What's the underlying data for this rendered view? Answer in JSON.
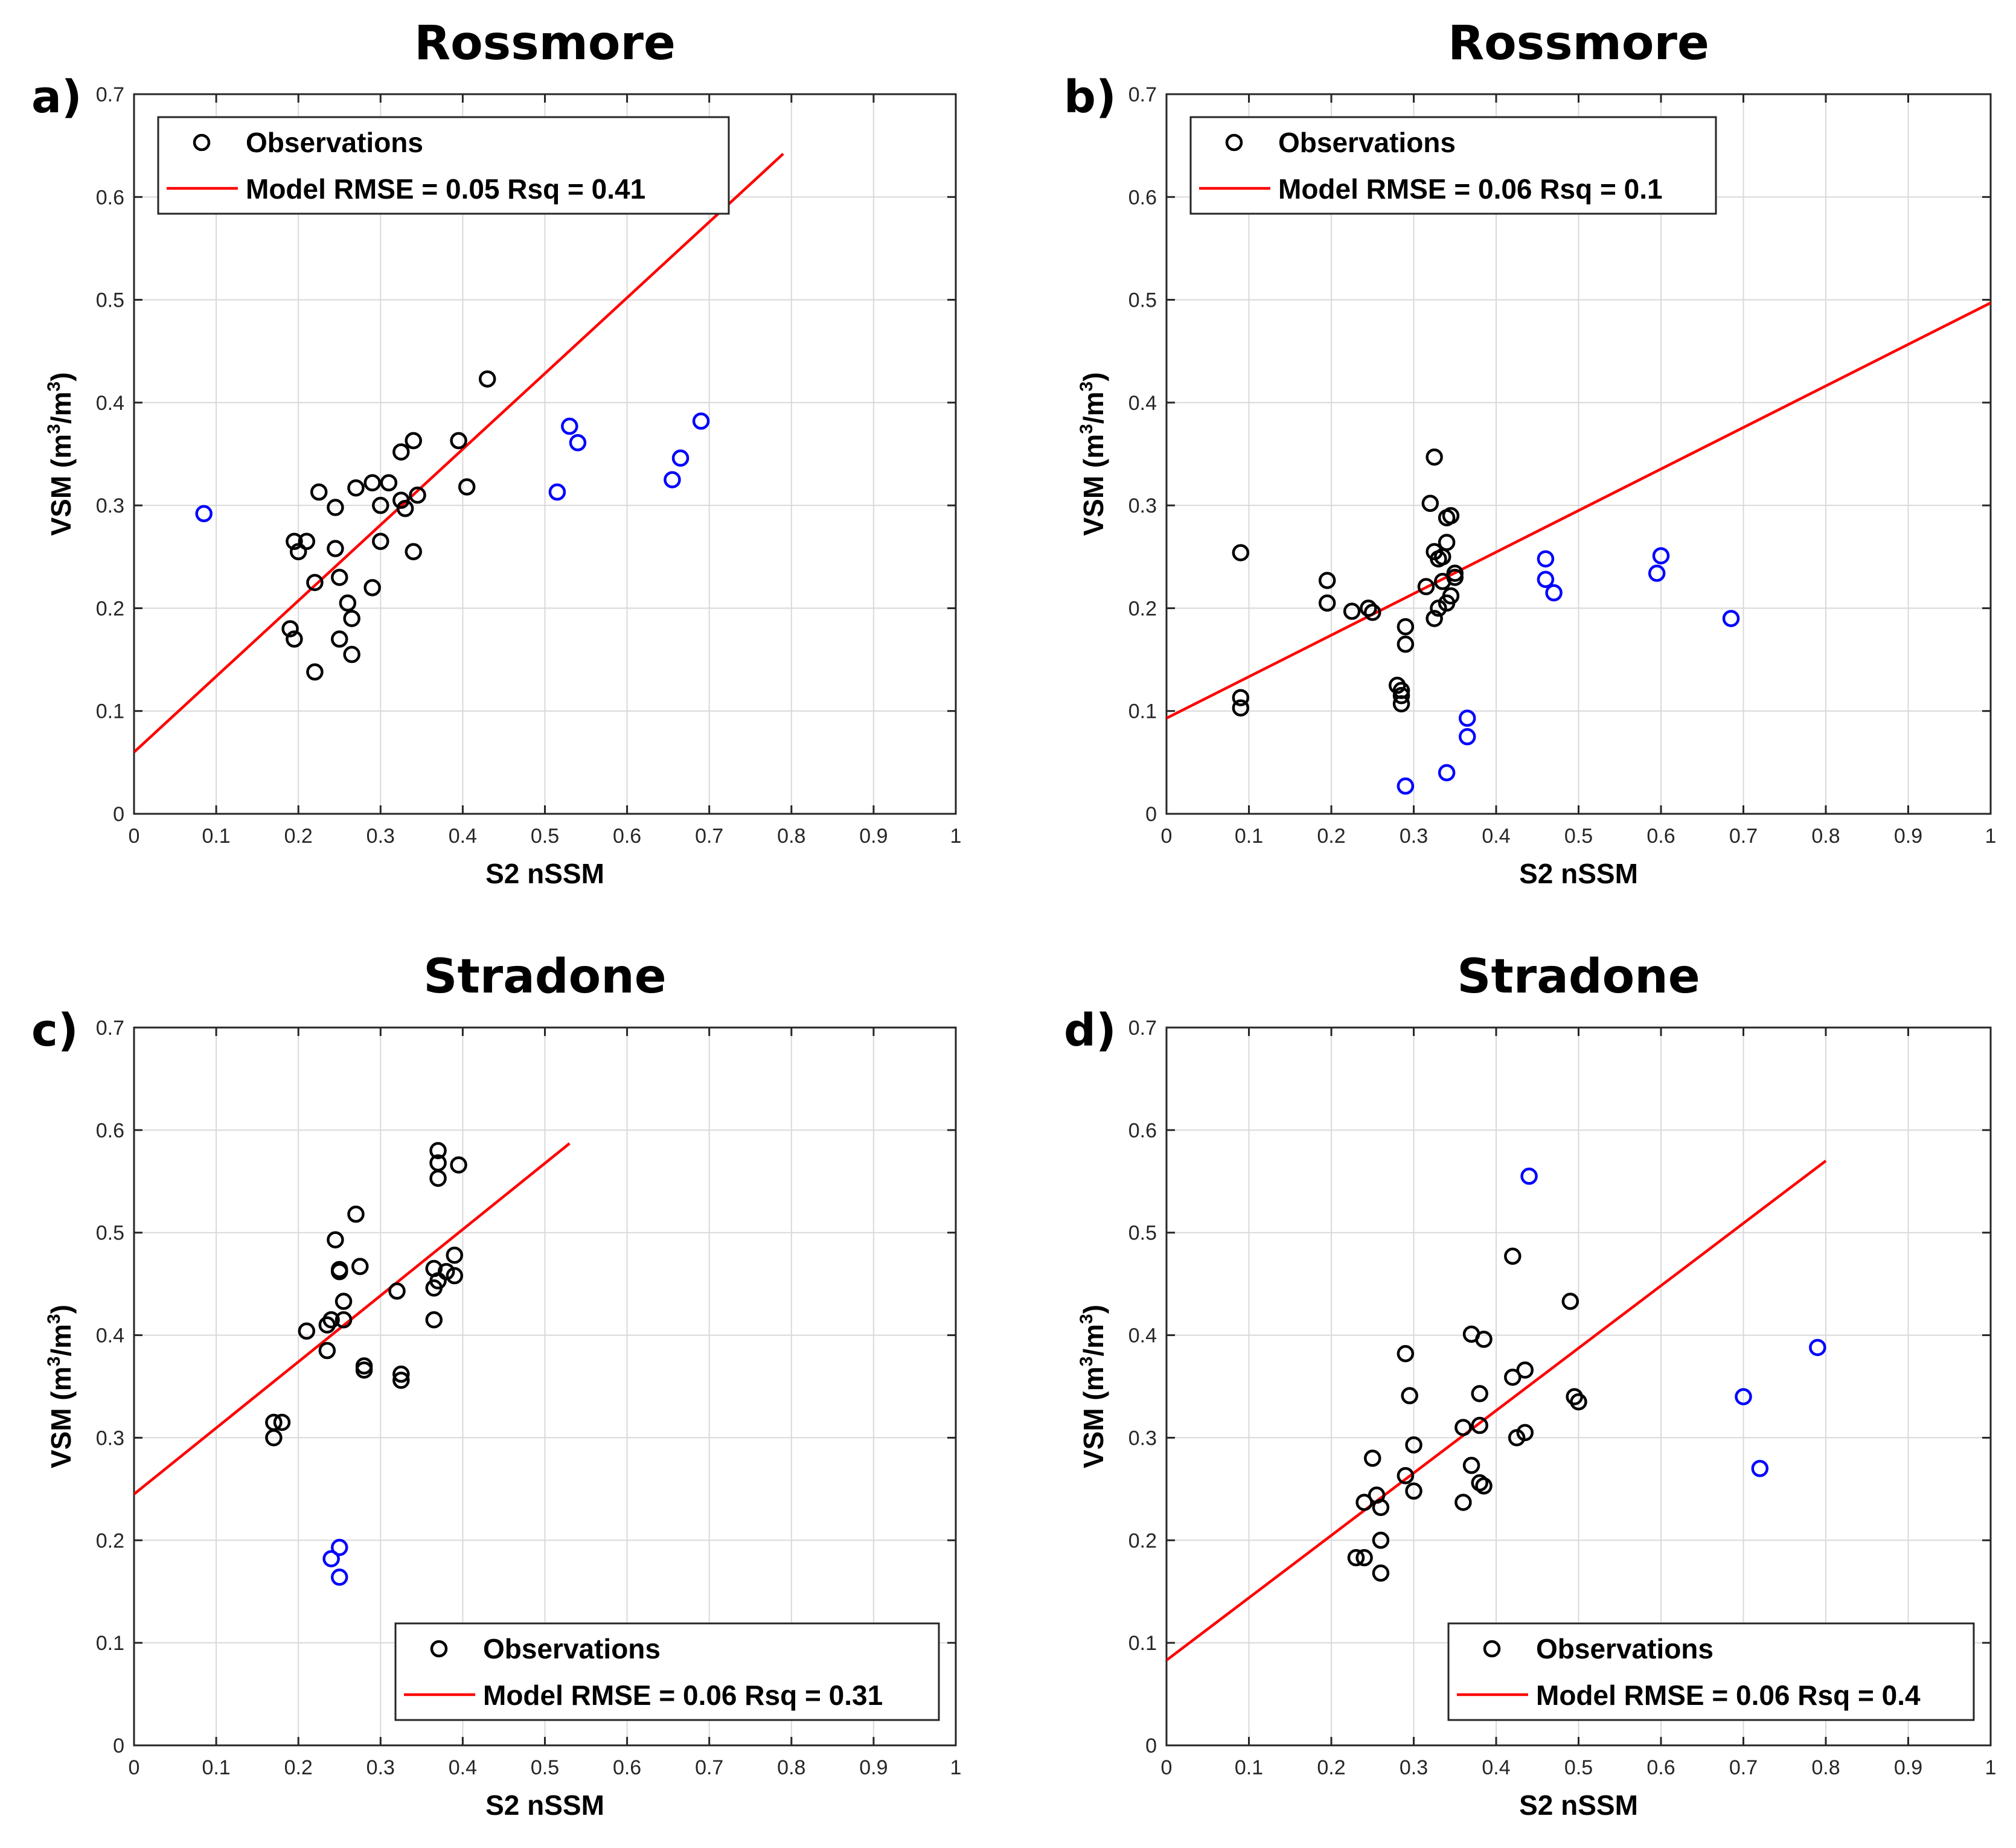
{
  "figure": {
    "colors": {
      "observations": "#000000",
      "outliers": "#0000ff",
      "model": "#ff0000",
      "grid": "#d9d9d9",
      "axes": "#262626"
    }
  },
  "chart_data": [
    {
      "id": "a",
      "panel_label": "a)",
      "type": "scatter",
      "title": "Rossmore",
      "xlabel": "S2 nSSM",
      "ylabel": "VSM (m3/m3)",
      "ylabel_parts": [
        "VSM (m",
        "3",
        "/m",
        "3",
        ")"
      ],
      "xlim": [
        0,
        1
      ],
      "ylim": [
        0,
        0.7
      ],
      "xticks": [
        "0",
        "0.1",
        "0.2",
        "0.3",
        "0.4",
        "0.5",
        "0.6",
        "0.7",
        "0.8",
        "0.9",
        "1"
      ],
      "yticks": [
        "0",
        "0.1",
        "0.2",
        "0.3",
        "0.4",
        "0.5",
        "0.6",
        "0.7"
      ],
      "grid": true,
      "legend_position": "top-left",
      "legend": {
        "observations": "Observations",
        "model": "Model RMSE = 0.05 Rsq = 0.41"
      },
      "model_line": {
        "x": [
          0,
          0.79
        ],
        "y": [
          0.06,
          0.642
        ]
      },
      "observations": [
        [
          0.19,
          0.18
        ],
        [
          0.195,
          0.17
        ],
        [
          0.195,
          0.265
        ],
        [
          0.2,
          0.255
        ],
        [
          0.21,
          0.265
        ],
        [
          0.22,
          0.225
        ],
        [
          0.22,
          0.138
        ],
        [
          0.225,
          0.313
        ],
        [
          0.245,
          0.258
        ],
        [
          0.245,
          0.298
        ],
        [
          0.25,
          0.23
        ],
        [
          0.25,
          0.17
        ],
        [
          0.26,
          0.205
        ],
        [
          0.265,
          0.19
        ],
        [
          0.265,
          0.155
        ],
        [
          0.27,
          0.317
        ],
        [
          0.29,
          0.322
        ],
        [
          0.29,
          0.22
        ],
        [
          0.3,
          0.3
        ],
        [
          0.3,
          0.265
        ],
        [
          0.31,
          0.322
        ],
        [
          0.325,
          0.305
        ],
        [
          0.325,
          0.352
        ],
        [
          0.33,
          0.297
        ],
        [
          0.34,
          0.363
        ],
        [
          0.34,
          0.255
        ],
        [
          0.345,
          0.31
        ],
        [
          0.395,
          0.363
        ],
        [
          0.405,
          0.318
        ],
        [
          0.43,
          0.423
        ]
      ],
      "outliers": [
        [
          0.085,
          0.292
        ],
        [
          0.515,
          0.313
        ],
        [
          0.53,
          0.377
        ],
        [
          0.54,
          0.361
        ],
        [
          0.655,
          0.325
        ],
        [
          0.665,
          0.346
        ],
        [
          0.69,
          0.382
        ]
      ]
    },
    {
      "id": "b",
      "panel_label": "b)",
      "type": "scatter",
      "title": "Rossmore",
      "xlabel": "S2 nSSM",
      "ylabel": "VSM (m3/m3)",
      "ylabel_parts": [
        "VSM (m",
        "3",
        "/m",
        "3",
        ")"
      ],
      "xlim": [
        0,
        1
      ],
      "ylim": [
        0,
        0.7
      ],
      "xticks": [
        "0",
        "0.1",
        "0.2",
        "0.3",
        "0.4",
        "0.5",
        "0.6",
        "0.7",
        "0.8",
        "0.9",
        "1"
      ],
      "yticks": [
        "0",
        "0.1",
        "0.2",
        "0.3",
        "0.4",
        "0.5",
        "0.6",
        "0.7"
      ],
      "grid": true,
      "legend_position": "top-left",
      "legend": {
        "observations": "Observations",
        "model": "Model RMSE = 0.06 Rsq = 0.1"
      },
      "model_line": {
        "x": [
          0,
          1
        ],
        "y": [
          0.093,
          0.497
        ]
      },
      "observations": [
        [
          0.09,
          0.254
        ],
        [
          0.09,
          0.113
        ],
        [
          0.09,
          0.103
        ],
        [
          0.195,
          0.227
        ],
        [
          0.195,
          0.205
        ],
        [
          0.225,
          0.197
        ],
        [
          0.245,
          0.2
        ],
        [
          0.25,
          0.196
        ],
        [
          0.28,
          0.125
        ],
        [
          0.285,
          0.12
        ],
        [
          0.285,
          0.115
        ],
        [
          0.285,
          0.107
        ],
        [
          0.29,
          0.182
        ],
        [
          0.29,
          0.165
        ],
        [
          0.315,
          0.221
        ],
        [
          0.32,
          0.302
        ],
        [
          0.325,
          0.347
        ],
        [
          0.325,
          0.255
        ],
        [
          0.325,
          0.19
        ],
        [
          0.33,
          0.248
        ],
        [
          0.33,
          0.2
        ],
        [
          0.335,
          0.25
        ],
        [
          0.335,
          0.226
        ],
        [
          0.34,
          0.264
        ],
        [
          0.34,
          0.205
        ],
        [
          0.34,
          0.288
        ],
        [
          0.345,
          0.29
        ],
        [
          0.345,
          0.212
        ],
        [
          0.35,
          0.23
        ],
        [
          0.35,
          0.234
        ]
      ],
      "outliers": [
        [
          0.29,
          0.027
        ],
        [
          0.34,
          0.04
        ],
        [
          0.365,
          0.093
        ],
        [
          0.365,
          0.075
        ],
        [
          0.46,
          0.248
        ],
        [
          0.46,
          0.228
        ],
        [
          0.47,
          0.215
        ],
        [
          0.595,
          0.234
        ],
        [
          0.6,
          0.251
        ],
        [
          0.685,
          0.19
        ]
      ]
    },
    {
      "id": "c",
      "panel_label": "c)",
      "type": "scatter",
      "title": "Stradone",
      "xlabel": "S2 nSSM",
      "ylabel": "VSM (m3/m3)",
      "ylabel_parts": [
        "VSM (m",
        "3",
        "/m",
        "3",
        ")"
      ],
      "xlim": [
        0,
        1
      ],
      "ylim": [
        0,
        0.7
      ],
      "xticks": [
        "0",
        "0.1",
        "0.2",
        "0.3",
        "0.4",
        "0.5",
        "0.6",
        "0.7",
        "0.8",
        "0.9",
        "1"
      ],
      "yticks": [
        "0",
        "0.1",
        "0.2",
        "0.3",
        "0.4",
        "0.5",
        "0.6",
        "0.7"
      ],
      "grid": true,
      "legend_position": "bottom-right",
      "legend": {
        "observations": "Observations",
        "model": "Model RMSE = 0.06 Rsq = 0.31"
      },
      "model_line": {
        "x": [
          0,
          0.53
        ],
        "y": [
          0.245,
          0.587
        ]
      },
      "observations": [
        [
          0.17,
          0.3
        ],
        [
          0.17,
          0.315
        ],
        [
          0.18,
          0.315
        ],
        [
          0.21,
          0.404
        ],
        [
          0.235,
          0.385
        ],
        [
          0.235,
          0.41
        ],
        [
          0.24,
          0.415
        ],
        [
          0.245,
          0.493
        ],
        [
          0.25,
          0.464
        ],
        [
          0.25,
          0.462
        ],
        [
          0.255,
          0.433
        ],
        [
          0.255,
          0.415
        ],
        [
          0.27,
          0.518
        ],
        [
          0.275,
          0.467
        ],
        [
          0.28,
          0.37
        ],
        [
          0.28,
          0.366
        ],
        [
          0.32,
          0.443
        ],
        [
          0.325,
          0.362
        ],
        [
          0.325,
          0.356
        ],
        [
          0.365,
          0.415
        ],
        [
          0.365,
          0.446
        ],
        [
          0.365,
          0.465
        ],
        [
          0.37,
          0.453
        ],
        [
          0.37,
          0.58
        ],
        [
          0.37,
          0.553
        ],
        [
          0.37,
          0.568
        ],
        [
          0.38,
          0.462
        ],
        [
          0.39,
          0.478
        ],
        [
          0.39,
          0.458
        ],
        [
          0.395,
          0.566
        ]
      ],
      "outliers": [
        [
          0.24,
          0.182
        ],
        [
          0.25,
          0.193
        ],
        [
          0.25,
          0.164
        ]
      ]
    },
    {
      "id": "d",
      "panel_label": "d)",
      "type": "scatter",
      "title": "Stradone",
      "xlabel": "S2 nSSM",
      "ylabel": "VSM (m3/m3)",
      "ylabel_parts": [
        "VSM (m",
        "3",
        "/m",
        "3",
        ")"
      ],
      "xlim": [
        0,
        1
      ],
      "ylim": [
        0,
        0.7
      ],
      "xticks": [
        "0",
        "0.1",
        "0.2",
        "0.3",
        "0.4",
        "0.5",
        "0.6",
        "0.7",
        "0.8",
        "0.9",
        "1"
      ],
      "yticks": [
        "0",
        "0.1",
        "0.2",
        "0.3",
        "0.4",
        "0.5",
        "0.6",
        "0.7"
      ],
      "grid": true,
      "legend_position": "bottom-right",
      "legend": {
        "observations": "Observations",
        "model": "Model RMSE = 0.06 Rsq = 0.4"
      },
      "model_line": {
        "x": [
          0,
          0.8
        ],
        "y": [
          0.083,
          0.57
        ]
      },
      "observations": [
        [
          0.23,
          0.183
        ],
        [
          0.24,
          0.183
        ],
        [
          0.24,
          0.237
        ],
        [
          0.25,
          0.28
        ],
        [
          0.255,
          0.244
        ],
        [
          0.26,
          0.232
        ],
        [
          0.26,
          0.168
        ],
        [
          0.26,
          0.2
        ],
        [
          0.29,
          0.382
        ],
        [
          0.29,
          0.263
        ],
        [
          0.295,
          0.341
        ],
        [
          0.3,
          0.293
        ],
        [
          0.3,
          0.248
        ],
        [
          0.36,
          0.31
        ],
        [
          0.36,
          0.237
        ],
        [
          0.37,
          0.401
        ],
        [
          0.37,
          0.273
        ],
        [
          0.38,
          0.256
        ],
        [
          0.38,
          0.343
        ],
        [
          0.38,
          0.312
        ],
        [
          0.385,
          0.253
        ],
        [
          0.385,
          0.396
        ],
        [
          0.42,
          0.477
        ],
        [
          0.42,
          0.359
        ],
        [
          0.425,
          0.3
        ],
        [
          0.435,
          0.366
        ],
        [
          0.435,
          0.305
        ],
        [
          0.49,
          0.433
        ],
        [
          0.495,
          0.34
        ],
        [
          0.5,
          0.335
        ]
      ],
      "outliers": [
        [
          0.44,
          0.555
        ],
        [
          0.7,
          0.34
        ],
        [
          0.72,
          0.27
        ],
        [
          0.79,
          0.388
        ]
      ]
    }
  ]
}
